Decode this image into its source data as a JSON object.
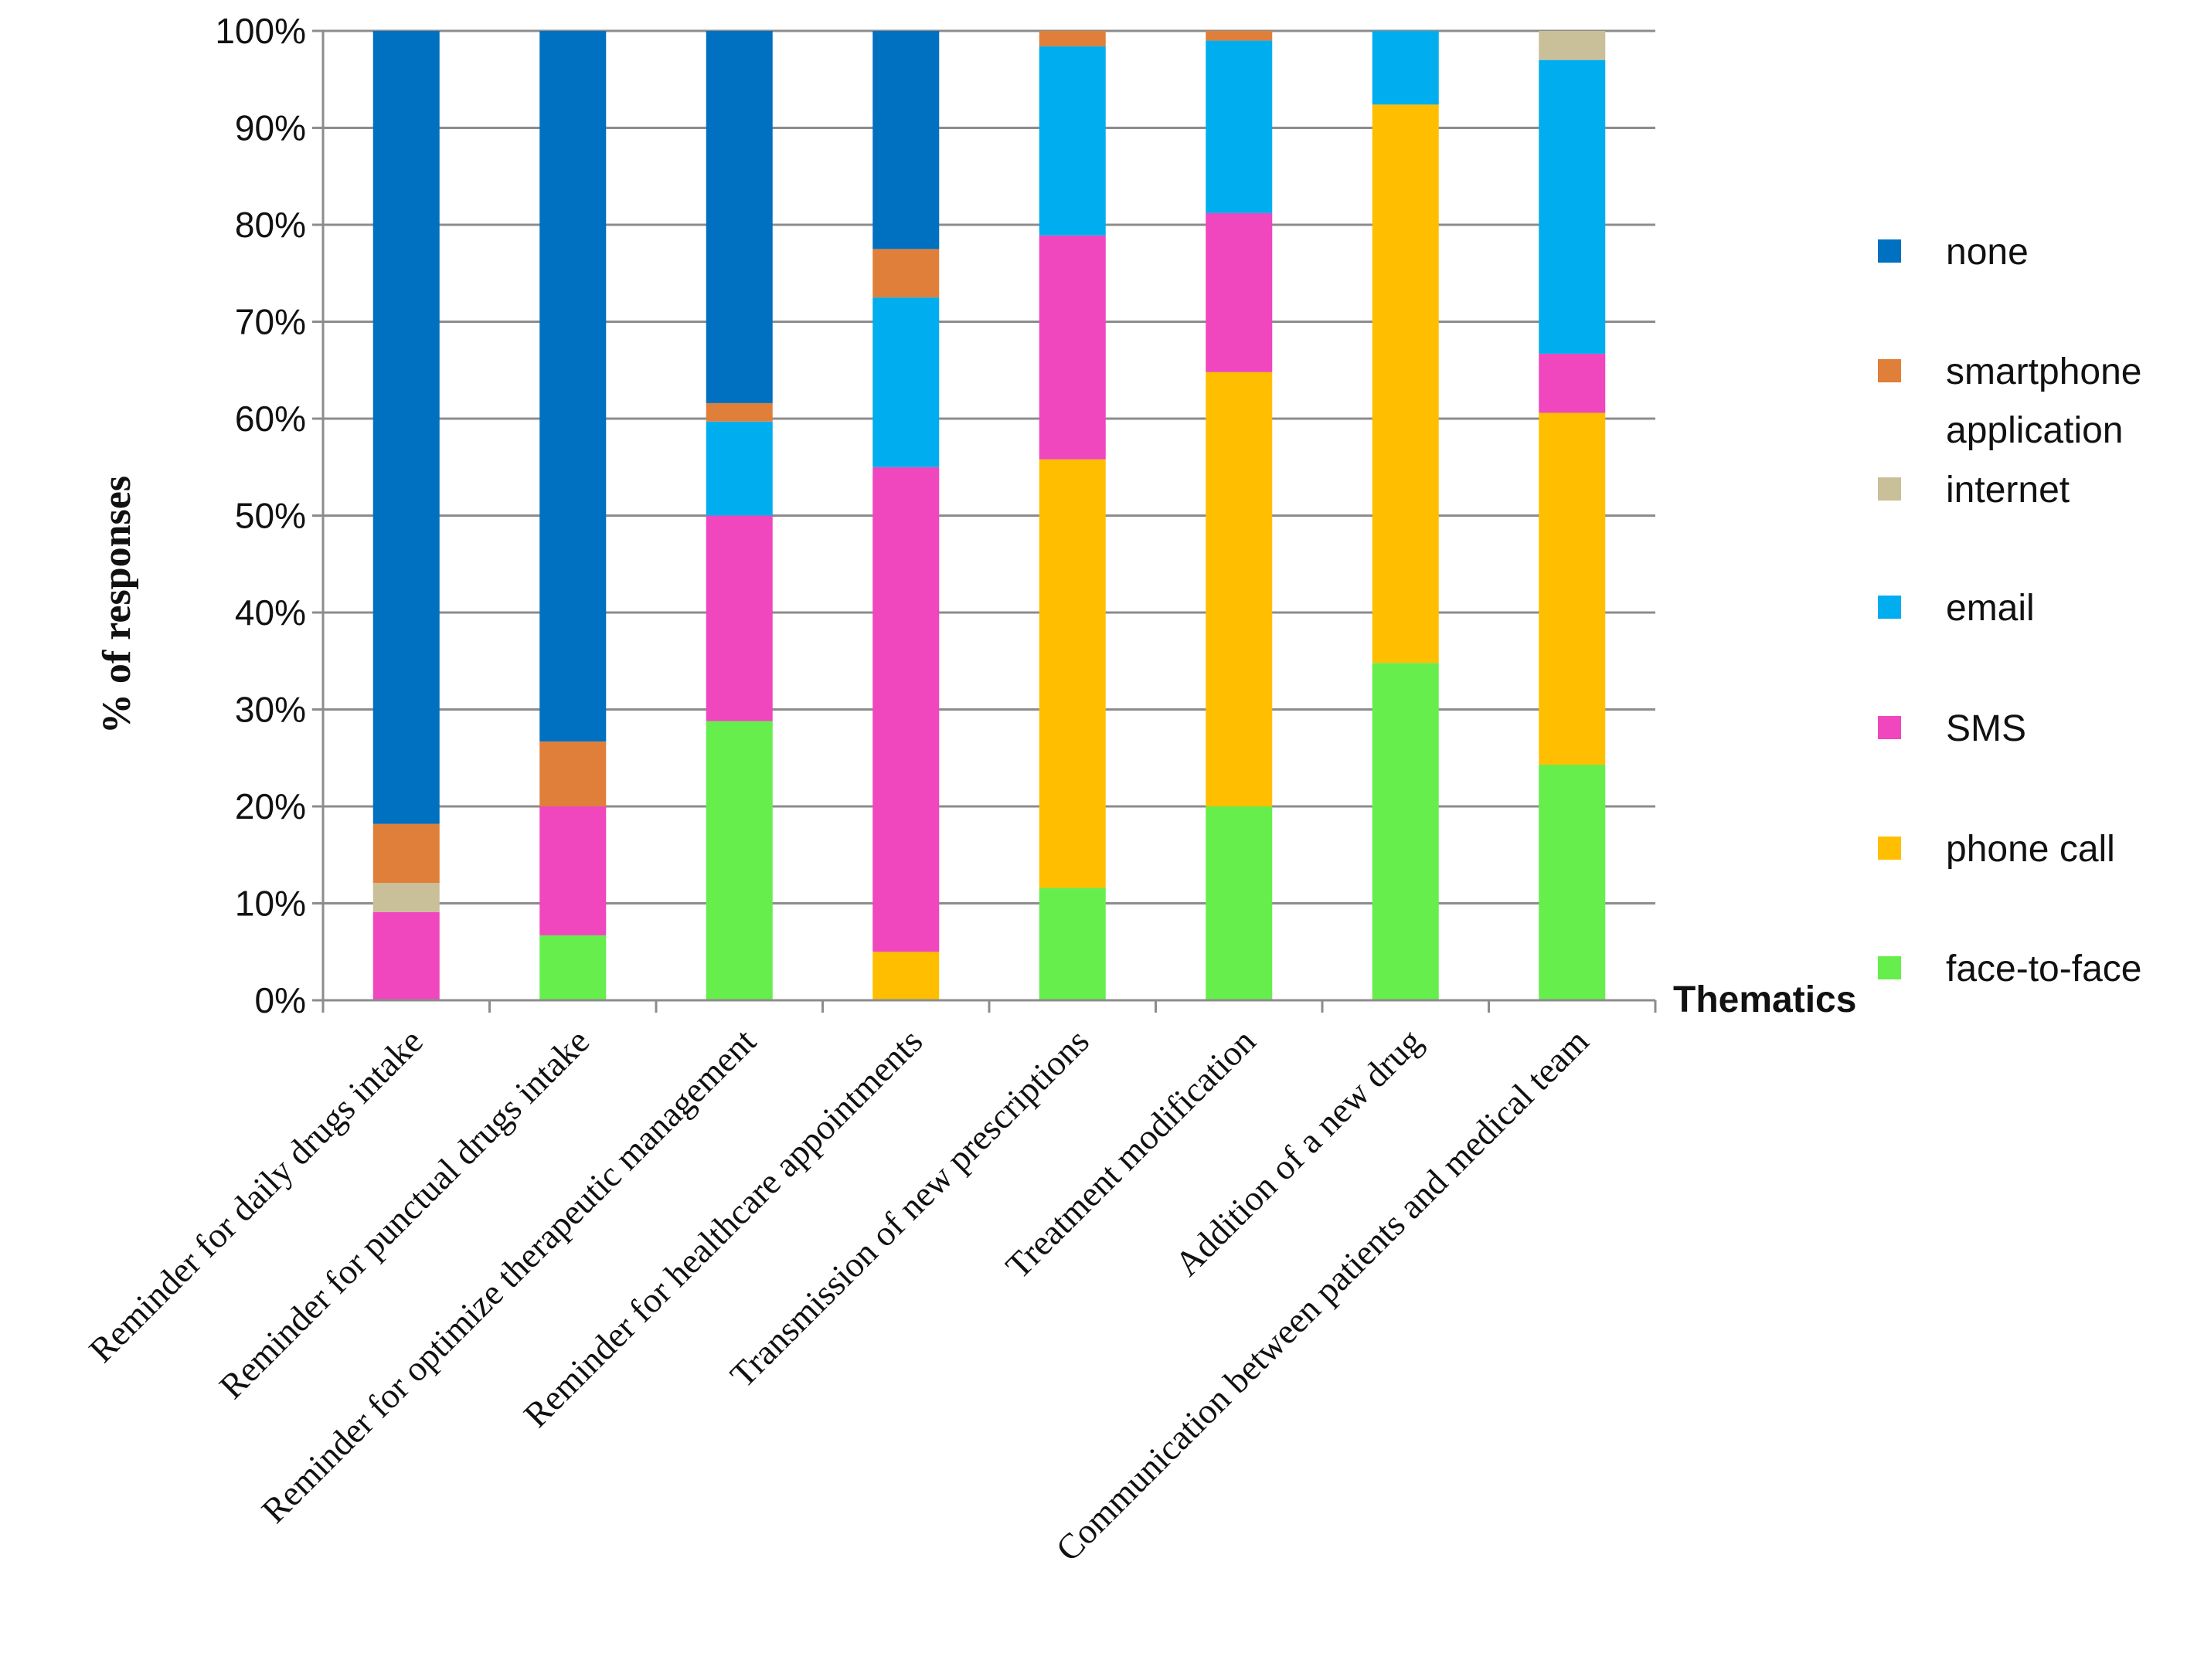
{
  "chart_data": {
    "type": "bar",
    "stacked": true,
    "title": "",
    "xlabel": "Thematics",
    "ylabel": "% of responses",
    "ylim": [
      0,
      100
    ],
    "yticks": [
      "0%",
      "10%",
      "20%",
      "30%",
      "40%",
      "50%",
      "60%",
      "70%",
      "80%",
      "90%",
      "100%"
    ],
    "grid": true,
    "legend_position": "right",
    "categories": [
      "Reminder for daily drugs intake",
      "Reminder for punctual drugs intake",
      "Reminder for optimize therapeutic management",
      "Reminder for healthcare appointments",
      "Transmission of new prescriptions",
      "Treatment modification",
      "Addition of a new drug",
      "Communication between patients and medical team"
    ],
    "series": [
      {
        "name": "face-to-face",
        "color": "#66EE4C",
        "values": [
          0,
          6.7,
          28.8,
          0,
          11.6,
          20,
          34.8,
          24.3
        ]
      },
      {
        "name": "phone call",
        "color": "#FFBF00",
        "values": [
          0,
          0,
          0,
          5,
          44.2,
          44.8,
          57.6,
          36.3
        ]
      },
      {
        "name": "SMS",
        "color": "#F046BE",
        "values": [
          9.1,
          13.3,
          21.2,
          50,
          23.1,
          16.4,
          0,
          6.1
        ]
      },
      {
        "name": "email",
        "color": "#00AEEF",
        "values": [
          0,
          0,
          9.7,
          17.5,
          19.5,
          17.8,
          7.6,
          30.3
        ]
      },
      {
        "name": "internet",
        "color": "#C9BF98",
        "values": [
          3,
          0,
          0,
          0,
          0,
          0,
          0,
          3
        ]
      },
      {
        "name": "smartphone application",
        "color": "#E07F3A",
        "values": [
          6.1,
          6.7,
          1.9,
          5,
          1.6,
          1,
          0,
          0
        ]
      },
      {
        "name": "none",
        "color": "#0070C0",
        "values": [
          81.8,
          73.3,
          38.4,
          22.5,
          0,
          0,
          0,
          0
        ]
      }
    ],
    "legend_order": [
      "none",
      "smartphone application",
      "internet",
      "email",
      "SMS",
      "phone call",
      "face-to-face"
    ]
  }
}
